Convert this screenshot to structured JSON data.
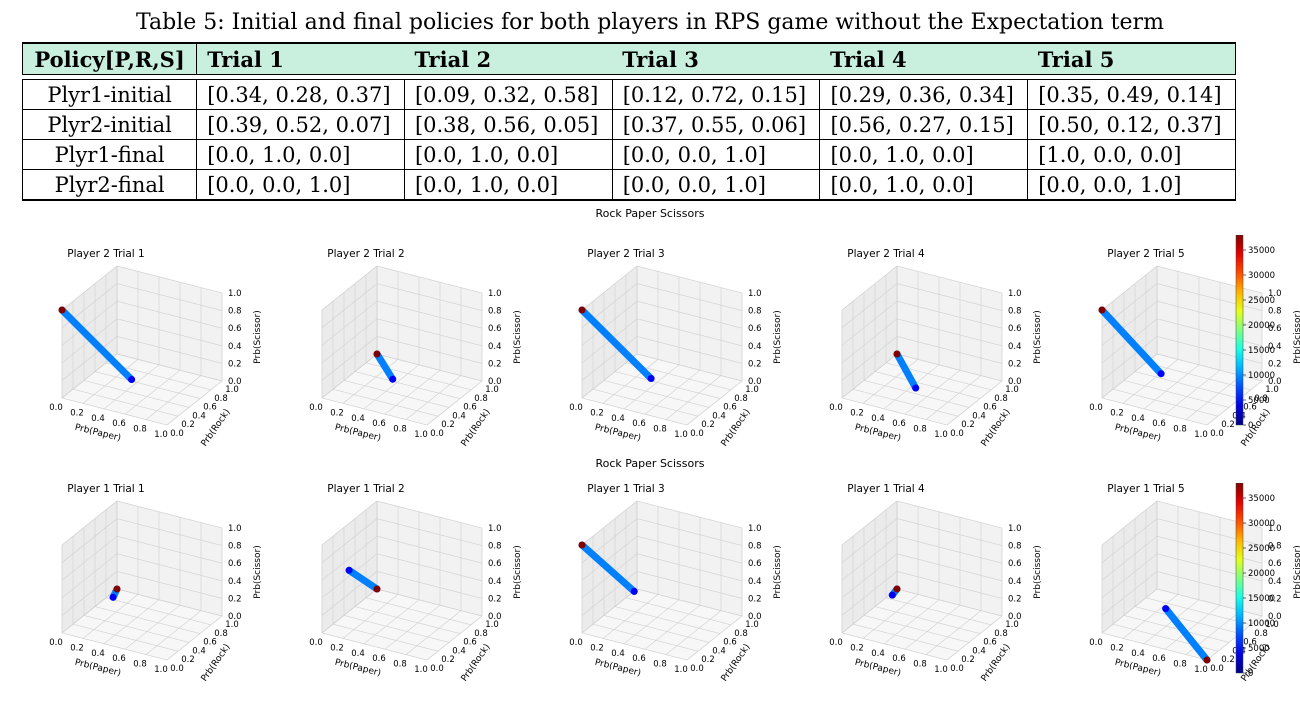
{
  "caption": "Table 5: Initial and final policies for both players in RPS game without the Expectation term",
  "table": {
    "headers": [
      "Policy[P,R,S]",
      "Trial 1",
      "Trial 2",
      "Trial 3",
      "Trial 4",
      "Trial 5"
    ],
    "rows": [
      [
        "Plyr1-initial",
        "[0.34, 0.28, 0.37]",
        "[0.09, 0.32, 0.58]",
        "[0.12, 0.72, 0.15]",
        "[0.29, 0.36, 0.34]",
        "[0.35, 0.49, 0.14]"
      ],
      [
        "Plyr2-initial",
        "[0.39, 0.52, 0.07]",
        "[0.38, 0.56, 0.05]",
        "[0.37, 0.55, 0.06]",
        "[0.56, 0.27, 0.15]",
        "[0.50, 0.12, 0.37]"
      ],
      [
        "Plyr1-final",
        "[0.0, 1.0, 0.0]",
        "[0.0, 1.0, 0.0]",
        "[0.0, 0.0, 1.0]",
        "[0.0, 1.0, 0.0]",
        "[1.0, 0.0, 0.0]"
      ],
      [
        "Plyr2-final",
        "[0.0, 0.0, 1.0]",
        "[0.0, 1.0, 0.0]",
        "[0.0, 0.0, 1.0]",
        "[0.0, 1.0, 0.0]",
        "[0.0, 0.0, 1.0]"
      ]
    ]
  },
  "figure_rows": [
    {
      "title": "Rock Paper Scissors",
      "player": "Player 2"
    },
    {
      "title": "Rock Paper Scissors",
      "player": "Player 1"
    }
  ],
  "axis_labels": {
    "paper": "Prb(Paper)",
    "rock": "Prb(Rock)",
    "scissor": "Prb(Scissor)"
  },
  "axis_ticks": [
    "0.0",
    "0.2",
    "0.4",
    "0.6",
    "0.8",
    "1.0"
  ],
  "colorbar_ticks": [
    "0",
    "5000",
    "10000",
    "15000",
    "20000",
    "25000",
    "30000",
    "35000"
  ],
  "chart_data": [
    {
      "type": "scatter",
      "title": "Player 2 Trial 1",
      "xlabel": "Prb(Paper)",
      "ylabel": "Prb(Rock)",
      "zlabel": "Prb(Scissor)",
      "xlim": [
        0,
        1
      ],
      "ylim": [
        0,
        1
      ],
      "zlim": [
        0,
        1
      ],
      "trajectory": [
        {
          "from": [
            0.39,
            0.52,
            0.07
          ],
          "to": [
            0.0,
            0.0,
            1.0
          ]
        }
      ],
      "color_scale": [
        0,
        38000
      ]
    },
    {
      "type": "scatter",
      "title": "Player 2 Trial 2",
      "xlabel": "Prb(Paper)",
      "ylabel": "Prb(Rock)",
      "zlabel": "Prb(Scissor)",
      "xlim": [
        0,
        1
      ],
      "ylim": [
        0,
        1
      ],
      "zlim": [
        0,
        1
      ],
      "trajectory": [
        {
          "from": [
            0.38,
            0.56,
            0.05
          ],
          "to": [
            0.0,
            1.0,
            0.0
          ]
        }
      ],
      "color_scale": [
        0,
        38000
      ]
    },
    {
      "type": "scatter",
      "title": "Player 2 Trial 3",
      "xlabel": "Prb(Paper)",
      "ylabel": "Prb(Rock)",
      "zlabel": "Prb(Scissor)",
      "xlim": [
        0,
        1
      ],
      "ylim": [
        0,
        1
      ],
      "zlim": [
        0,
        1
      ],
      "trajectory": [
        {
          "from": [
            0.37,
            0.55,
            0.06
          ],
          "to": [
            0.0,
            0.0,
            1.0
          ]
        }
      ],
      "color_scale": [
        0,
        38000
      ]
    },
    {
      "type": "scatter",
      "title": "Player 2 Trial 4",
      "xlabel": "Prb(Paper)",
      "ylabel": "Prb(Rock)",
      "zlabel": "Prb(Scissor)",
      "xlim": [
        0,
        1
      ],
      "ylim": [
        0,
        1
      ],
      "zlim": [
        0,
        1
      ],
      "trajectory": [
        {
          "from": [
            0.56,
            0.27,
            0.15
          ],
          "to": [
            0.0,
            1.0,
            0.0
          ]
        }
      ],
      "color_scale": [
        0,
        38000
      ]
    },
    {
      "type": "scatter",
      "title": "Player 2 Trial 5",
      "xlabel": "Prb(Paper)",
      "ylabel": "Prb(Rock)",
      "zlabel": "Prb(Scissor)",
      "xlim": [
        0,
        1
      ],
      "ylim": [
        0,
        1
      ],
      "zlim": [
        0,
        1
      ],
      "trajectory": [
        {
          "from": [
            0.5,
            0.12,
            0.37
          ],
          "to": [
            0.0,
            0.0,
            1.0
          ]
        }
      ],
      "color_scale": [
        0,
        38000
      ]
    },
    {
      "type": "scatter",
      "title": "Player 1 Trial 1",
      "xlabel": "Prb(Paper)",
      "ylabel": "Prb(Rock)",
      "zlabel": "Prb(Scissor)",
      "xlim": [
        0,
        1
      ],
      "ylim": [
        0,
        1
      ],
      "zlim": [
        0,
        1
      ],
      "trajectory": [
        {
          "from": [
            0.34,
            0.28,
            0.37
          ],
          "to": [
            0.0,
            1.0,
            0.0
          ]
        }
      ],
      "color_scale": [
        0,
        38000
      ]
    },
    {
      "type": "scatter",
      "title": "Player 1 Trial 2",
      "xlabel": "Prb(Paper)",
      "ylabel": "Prb(Rock)",
      "zlabel": "Prb(Scissor)",
      "xlim": [
        0,
        1
      ],
      "ylim": [
        0,
        1
      ],
      "zlim": [
        0,
        1
      ],
      "trajectory": [
        {
          "from": [
            0.09,
            0.32,
            0.58
          ],
          "to": [
            0.0,
            1.0,
            0.0
          ]
        }
      ],
      "color_scale": [
        0,
        38000
      ]
    },
    {
      "type": "scatter",
      "title": "Player 1 Trial 3",
      "xlabel": "Prb(Paper)",
      "ylabel": "Prb(Rock)",
      "zlabel": "Prb(Scissor)",
      "xlim": [
        0,
        1
      ],
      "ylim": [
        0,
        1
      ],
      "zlim": [
        0,
        1
      ],
      "trajectory": [
        {
          "from": [
            0.12,
            0.72,
            0.15
          ],
          "to": [
            0.0,
            0.0,
            1.0
          ]
        }
      ],
      "color_scale": [
        0,
        38000
      ]
    },
    {
      "type": "scatter",
      "title": "Player 1 Trial 4",
      "xlabel": "Prb(Paper)",
      "ylabel": "Prb(Rock)",
      "zlabel": "Prb(Scissor)",
      "xlim": [
        0,
        1
      ],
      "ylim": [
        0,
        1
      ],
      "zlim": [
        0,
        1
      ],
      "trajectory": [
        {
          "from": [
            0.29,
            0.36,
            0.34
          ],
          "to": [
            0.0,
            1.0,
            0.0
          ]
        }
      ],
      "color_scale": [
        0,
        38000
      ]
    },
    {
      "type": "scatter",
      "title": "Player 1 Trial 5",
      "xlabel": "Prb(Paper)",
      "ylabel": "Prb(Rock)",
      "zlabel": "Prb(Scissor)",
      "xlim": [
        0,
        1
      ],
      "ylim": [
        0,
        1
      ],
      "zlim": [
        0,
        1
      ],
      "trajectory": [
        {
          "from": [
            0.35,
            0.49,
            0.14
          ],
          "to": [
            1.0,
            0.0,
            0.0
          ]
        }
      ],
      "color_scale": [
        0,
        38000
      ]
    }
  ]
}
